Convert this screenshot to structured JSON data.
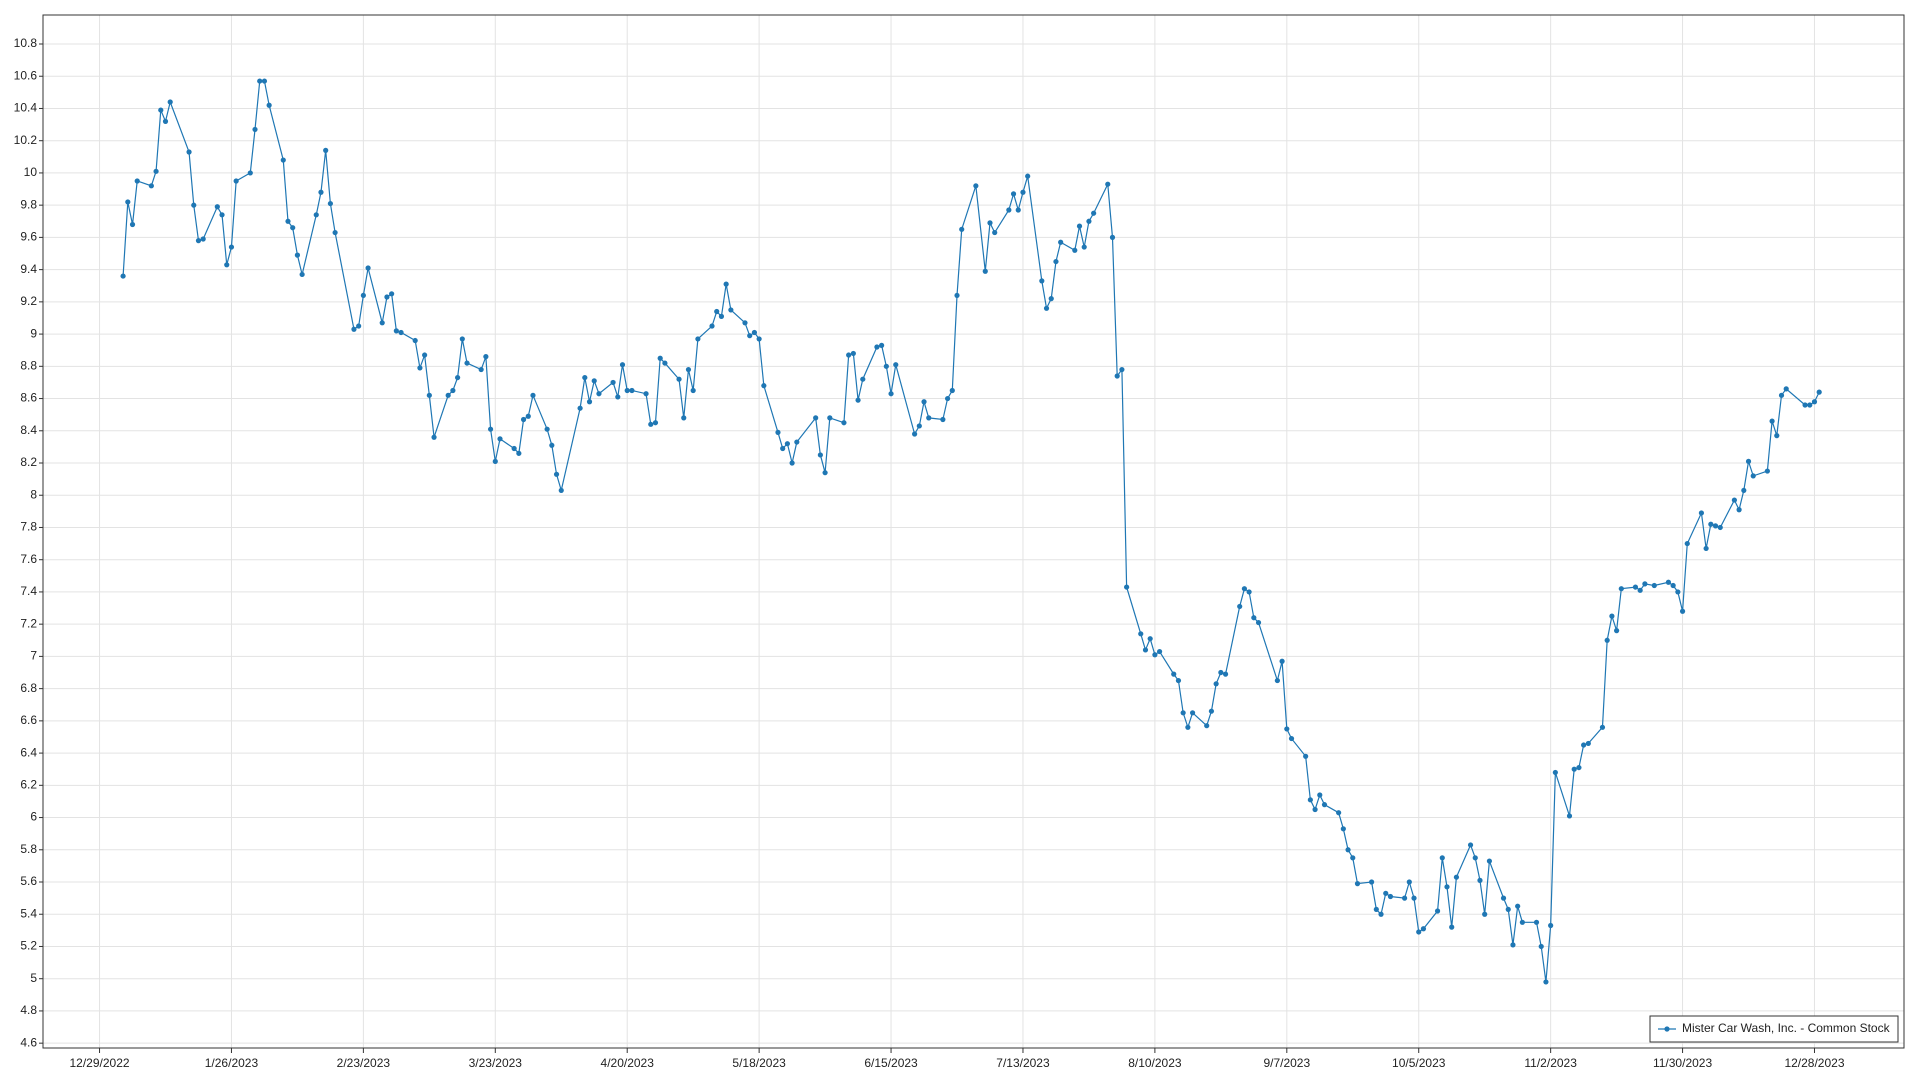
{
  "chart_data": {
    "type": "line",
    "x": [
      "2023-01-03",
      "2023-01-04",
      "2023-01-05",
      "2023-01-06",
      "2023-01-09",
      "2023-01-10",
      "2023-01-11",
      "2023-01-12",
      "2023-01-13",
      "2023-01-17",
      "2023-01-18",
      "2023-01-19",
      "2023-01-20",
      "2023-01-23",
      "2023-01-24",
      "2023-01-25",
      "2023-01-26",
      "2023-01-27",
      "2023-01-30",
      "2023-01-31",
      "2023-02-01",
      "2023-02-02",
      "2023-02-03",
      "2023-02-06",
      "2023-02-07",
      "2023-02-08",
      "2023-02-09",
      "2023-02-10",
      "2023-02-13",
      "2023-02-14",
      "2023-02-15",
      "2023-02-16",
      "2023-02-17",
      "2023-02-21",
      "2023-02-22",
      "2023-02-23",
      "2023-02-24",
      "2023-02-27",
      "2023-02-28",
      "2023-03-01",
      "2023-03-02",
      "2023-03-03",
      "2023-03-06",
      "2023-03-07",
      "2023-03-08",
      "2023-03-09",
      "2023-03-10",
      "2023-03-13",
      "2023-03-14",
      "2023-03-15",
      "2023-03-16",
      "2023-03-17",
      "2023-03-20",
      "2023-03-21",
      "2023-03-22",
      "2023-03-23",
      "2023-03-24",
      "2023-03-27",
      "2023-03-28",
      "2023-03-29",
      "2023-03-30",
      "2023-03-31",
      "2023-04-03",
      "2023-04-04",
      "2023-04-05",
      "2023-04-06",
      "2023-04-10",
      "2023-04-11",
      "2023-04-12",
      "2023-04-13",
      "2023-04-14",
      "2023-04-17",
      "2023-04-18",
      "2023-04-19",
      "2023-04-20",
      "2023-04-21",
      "2023-04-24",
      "2023-04-25",
      "2023-04-26",
      "2023-04-27",
      "2023-04-28",
      "2023-05-01",
      "2023-05-02",
      "2023-05-03",
      "2023-05-04",
      "2023-05-05",
      "2023-05-08",
      "2023-05-09",
      "2023-05-10",
      "2023-05-11",
      "2023-05-12",
      "2023-05-15",
      "2023-05-16",
      "2023-05-17",
      "2023-05-18",
      "2023-05-19",
      "2023-05-22",
      "2023-05-23",
      "2023-05-24",
      "2023-05-25",
      "2023-05-26",
      "2023-05-30",
      "2023-05-31",
      "2023-06-01",
      "2023-06-02",
      "2023-06-05",
      "2023-06-06",
      "2023-06-07",
      "2023-06-08",
      "2023-06-09",
      "2023-06-12",
      "2023-06-13",
      "2023-06-14",
      "2023-06-15",
      "2023-06-16",
      "2023-06-20",
      "2023-06-21",
      "2023-06-22",
      "2023-06-23",
      "2023-06-26",
      "2023-06-27",
      "2023-06-28",
      "2023-06-29",
      "2023-06-30",
      "2023-07-03",
      "2023-07-05",
      "2023-07-06",
      "2023-07-07",
      "2023-07-10",
      "2023-07-11",
      "2023-07-12",
      "2023-07-13",
      "2023-07-14",
      "2023-07-17",
      "2023-07-18",
      "2023-07-19",
      "2023-07-20",
      "2023-07-21",
      "2023-07-24",
      "2023-07-25",
      "2023-07-26",
      "2023-07-27",
      "2023-07-28",
      "2023-07-31",
      "2023-08-01",
      "2023-08-02",
      "2023-08-03",
      "2023-08-04",
      "2023-08-07",
      "2023-08-08",
      "2023-08-09",
      "2023-08-10",
      "2023-08-11",
      "2023-08-14",
      "2023-08-15",
      "2023-08-16",
      "2023-08-17",
      "2023-08-18",
      "2023-08-21",
      "2023-08-22",
      "2023-08-23",
      "2023-08-24",
      "2023-08-25",
      "2023-08-28",
      "2023-08-29",
      "2023-08-30",
      "2023-08-31",
      "2023-09-01",
      "2023-09-05",
      "2023-09-06",
      "2023-09-07",
      "2023-09-08",
      "2023-09-11",
      "2023-09-12",
      "2023-09-13",
      "2023-09-14",
      "2023-09-15",
      "2023-09-18",
      "2023-09-19",
      "2023-09-20",
      "2023-09-21",
      "2023-09-22",
      "2023-09-25",
      "2023-09-26",
      "2023-09-27",
      "2023-09-28",
      "2023-09-29",
      "2023-10-02",
      "2023-10-03",
      "2023-10-04",
      "2023-10-05",
      "2023-10-06",
      "2023-10-09",
      "2023-10-10",
      "2023-10-11",
      "2023-10-12",
      "2023-10-13",
      "2023-10-16",
      "2023-10-17",
      "2023-10-18",
      "2023-10-19",
      "2023-10-20",
      "2023-10-23",
      "2023-10-24",
      "2023-10-25",
      "2023-10-26",
      "2023-10-27",
      "2023-10-30",
      "2023-10-31",
      "2023-11-01",
      "2023-11-02",
      "2023-11-03",
      "2023-11-06",
      "2023-11-07",
      "2023-11-08",
      "2023-11-09",
      "2023-11-10",
      "2023-11-13",
      "2023-11-14",
      "2023-11-15",
      "2023-11-16",
      "2023-11-17",
      "2023-11-20",
      "2023-11-21",
      "2023-11-22",
      "2023-11-24",
      "2023-11-27",
      "2023-11-28",
      "2023-11-29",
      "2023-11-30",
      "2023-12-01",
      "2023-12-04",
      "2023-12-05",
      "2023-12-06",
      "2023-12-07",
      "2023-12-08",
      "2023-12-11",
      "2023-12-12",
      "2023-12-13",
      "2023-12-14",
      "2023-12-15",
      "2023-12-18",
      "2023-12-19",
      "2023-12-20",
      "2023-12-21",
      "2023-12-22",
      "2023-12-26",
      "2023-12-27",
      "2023-12-28",
      "2023-12-29"
    ],
    "series": [
      {
        "name": "Mister Car Wash, Inc. - Common Stock",
        "color": "#1f77b4",
        "values": [
          9.36,
          9.82,
          9.68,
          9.95,
          9.92,
          10.01,
          10.39,
          10.32,
          10.44,
          10.13,
          9.8,
          9.58,
          9.59,
          9.79,
          9.74,
          9.43,
          9.54,
          9.95,
          10.0,
          10.27,
          10.57,
          10.57,
          10.42,
          10.08,
          9.7,
          9.66,
          9.49,
          9.37,
          9.74,
          9.88,
          10.14,
          9.81,
          9.63,
          9.03,
          9.05,
          9.24,
          9.41,
          9.07,
          9.23,
          9.25,
          9.02,
          9.01,
          8.96,
          8.79,
          8.87,
          8.62,
          8.36,
          8.62,
          8.65,
          8.73,
          8.97,
          8.82,
          8.78,
          8.86,
          8.41,
          8.21,
          8.35,
          8.29,
          8.26,
          8.47,
          8.49,
          8.62,
          8.41,
          8.31,
          8.13,
          8.03,
          8.54,
          8.73,
          8.58,
          8.71,
          8.63,
          8.7,
          8.61,
          8.81,
          8.65,
          8.65,
          8.63,
          8.44,
          8.45,
          8.85,
          8.82,
          8.72,
          8.48,
          8.78,
          8.65,
          8.97,
          9.05,
          9.14,
          9.11,
          9.31,
          9.15,
          9.07,
          8.99,
          9.01,
          8.97,
          8.68,
          8.39,
          8.29,
          8.32,
          8.2,
          8.33,
          8.48,
          8.25,
          8.14,
          8.48,
          8.45,
          8.87,
          8.88,
          8.59,
          8.72,
          8.92,
          8.93,
          8.8,
          8.63,
          8.81,
          8.38,
          8.43,
          8.58,
          8.48,
          8.47,
          8.6,
          8.65,
          9.24,
          9.65,
          9.92,
          9.39,
          9.69,
          9.63,
          9.77,
          9.87,
          9.77,
          9.88,
          9.98,
          9.33,
          9.16,
          9.22,
          9.45,
          9.57,
          9.52,
          9.67,
          9.54,
          9.7,
          9.75,
          9.93,
          9.6,
          8.74,
          8.78,
          7.43,
          7.14,
          7.04,
          7.11,
          7.01,
          7.03,
          6.89,
          6.85,
          6.65,
          6.56,
          6.65,
          6.57,
          6.66,
          6.83,
          6.9,
          6.89,
          7.31,
          7.42,
          7.4,
          7.24,
          7.21,
          6.85,
          6.97,
          6.55,
          6.49,
          6.38,
          6.11,
          6.05,
          6.14,
          6.08,
          6.03,
          5.93,
          5.8,
          5.75,
          5.59,
          5.6,
          5.43,
          5.4,
          5.53,
          5.51,
          5.5,
          5.6,
          5.5,
          5.29,
          5.31,
          5.42,
          5.75,
          5.57,
          5.32,
          5.63,
          5.83,
          5.75,
          5.61,
          5.4,
          5.73,
          5.5,
          5.43,
          5.21,
          5.45,
          5.35,
          5.35,
          5.2,
          4.98,
          5.33,
          6.28,
          6.01,
          6.3,
          6.31,
          6.45,
          6.46,
          6.56,
          7.1,
          7.25,
          7.16,
          7.42,
          7.43,
          7.41,
          7.45,
          7.44,
          7.46,
          7.44,
          7.4,
          7.28,
          7.7,
          7.89,
          7.67,
          7.82,
          7.81,
          7.8,
          7.97,
          7.91,
          8.03,
          8.21,
          8.12,
          8.15,
          8.46,
          8.37,
          8.62,
          8.66,
          8.56,
          8.56,
          8.58,
          8.64
        ]
      }
    ],
    "xlim": [
      "2022-12-17",
      "2024-01-16"
    ],
    "xticks": [
      {
        "value": "2022-12-29",
        "label": "12/29/2022"
      },
      {
        "value": "2023-01-26",
        "label": "1/26/2023"
      },
      {
        "value": "2023-02-23",
        "label": "2/23/2023"
      },
      {
        "value": "2023-03-23",
        "label": "3/23/2023"
      },
      {
        "value": "2023-04-20",
        "label": "4/20/2023"
      },
      {
        "value": "2023-05-18",
        "label": "5/18/2023"
      },
      {
        "value": "2023-06-15",
        "label": "6/15/2023"
      },
      {
        "value": "2023-07-13",
        "label": "7/13/2023"
      },
      {
        "value": "2023-08-10",
        "label": "8/10/2023"
      },
      {
        "value": "2023-09-07",
        "label": "9/7/2023"
      },
      {
        "value": "2023-10-05",
        "label": "10/5/2023"
      },
      {
        "value": "2023-11-02",
        "label": "11/2/2023"
      },
      {
        "value": "2023-11-30",
        "label": "11/30/2023"
      },
      {
        "value": "2023-12-28",
        "label": "12/28/2023"
      }
    ],
    "ylim": [
      4.57,
      10.98
    ],
    "yticks": [
      4.6,
      4.8,
      5,
      5.2,
      5.4,
      5.6,
      5.8,
      6,
      6.2,
      6.4,
      6.6,
      6.8,
      7,
      7.2,
      7.4,
      7.6,
      7.8,
      8,
      8.2,
      8.4,
      8.6,
      8.8,
      9,
      9.2,
      9.4,
      9.6,
      9.8,
      10,
      10.2,
      10.4,
      10.6,
      10.8
    ],
    "grid": true,
    "legend": "bottom-right"
  }
}
